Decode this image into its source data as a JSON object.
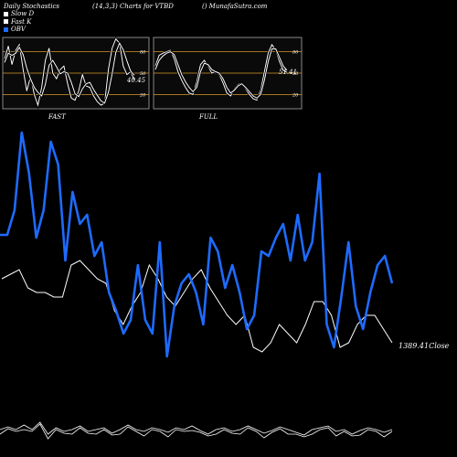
{
  "header": {
    "title": "Daily Stochastics",
    "params": "(14,3,3) Charts for VTBD",
    "site": "() MunafaSutra.com"
  },
  "legend": [
    {
      "label": "Slow  D",
      "color": "#ffffff"
    },
    {
      "label": "Fast K",
      "color": "#ffffff"
    },
    {
      "label": "OBV",
      "color": "#1e6bff"
    }
  ],
  "colors": {
    "obv": "#1e6bff",
    "stoch": "#ffffff",
    "guide": "#d99a2b",
    "panel": "#0a0a0a",
    "border": "#888888"
  },
  "chart_data": [
    {
      "type": "line",
      "name": "fast-stochastic-panel",
      "xlabel": "FAST",
      "ylim": [
        0,
        100
      ],
      "y_ticks": [
        20,
        50,
        80
      ],
      "value_label": "40.45",
      "series": [
        {
          "name": "Fast K",
          "values": [
            70,
            88,
            62,
            82,
            90,
            55,
            25,
            45,
            20,
            5,
            30,
            68,
            85,
            50,
            42,
            55,
            60,
            35,
            15,
            12,
            25,
            48,
            32,
            30,
            18,
            10,
            5,
            8,
            55,
            85,
            98,
            92,
            60,
            48,
            52,
            40
          ]
        },
        {
          "name": "Slow  D",
          "values": [
            65,
            78,
            75,
            78,
            86,
            76,
            57,
            42,
            30,
            23,
            18,
            34,
            61,
            68,
            59,
            49,
            52,
            50,
            37,
            21,
            17,
            28,
            35,
            37,
            27,
            19,
            11,
            8,
            23,
            49,
            79,
            92,
            83,
            67,
            53,
            47
          ]
        }
      ]
    },
    {
      "type": "line",
      "name": "full-stochastic-panel",
      "xlabel": "FULL",
      "ylim": [
        0,
        100
      ],
      "y_ticks": [
        20,
        50,
        80
      ],
      "value_label": "51.41",
      "series": [
        {
          "name": "Fast K",
          "values": [
            60,
            75,
            78,
            80,
            82,
            70,
            52,
            40,
            30,
            22,
            20,
            38,
            62,
            68,
            60,
            50,
            52,
            48,
            36,
            22,
            18,
            28,
            34,
            36,
            28,
            20,
            14,
            12,
            26,
            52,
            78,
            90,
            82,
            66,
            54,
            51
          ]
        },
        {
          "name": "Slow  D",
          "values": [
            55,
            68,
            74,
            78,
            80,
            76,
            62,
            48,
            38,
            30,
            24,
            30,
            52,
            64,
            62,
            55,
            52,
            50,
            42,
            30,
            22,
            26,
            32,
            35,
            30,
            24,
            18,
            15,
            20,
            40,
            66,
            84,
            84,
            72,
            60,
            54
          ]
        }
      ]
    },
    {
      "type": "line",
      "name": "price-obv-panel",
      "value_label": "1389.41",
      "value_label_suffix": "Close",
      "series": [
        {
          "name": "OBV",
          "values": [
            367,
            367,
            340,
            255,
            300,
            370,
            340,
            265,
            290,
            395,
            320,
            355,
            345,
            390,
            375,
            430,
            450,
            475,
            460,
            400,
            460,
            475,
            375,
            500,
            445,
            420,
            410,
            430,
            465,
            370,
            385,
            425,
            400,
            430,
            470,
            455,
            385,
            390,
            370,
            355,
            395,
            345,
            395,
            375,
            300,
            465,
            490,
            435,
            375,
            445,
            470,
            430,
            400,
            390,
            420
          ]
        },
        {
          "name": "Close",
          "values": [
            305,
            300,
            295,
            315,
            320,
            320,
            325,
            325,
            290,
            285,
            295,
            305,
            310,
            340,
            355,
            335,
            320,
            290,
            305,
            325,
            335,
            320,
            305,
            295,
            315,
            330,
            345,
            355,
            345,
            380,
            385,
            375,
            355,
            365,
            375,
            355,
            330,
            330,
            345,
            380,
            375,
            355,
            345,
            345,
            360,
            375
          ]
        }
      ]
    }
  ]
}
